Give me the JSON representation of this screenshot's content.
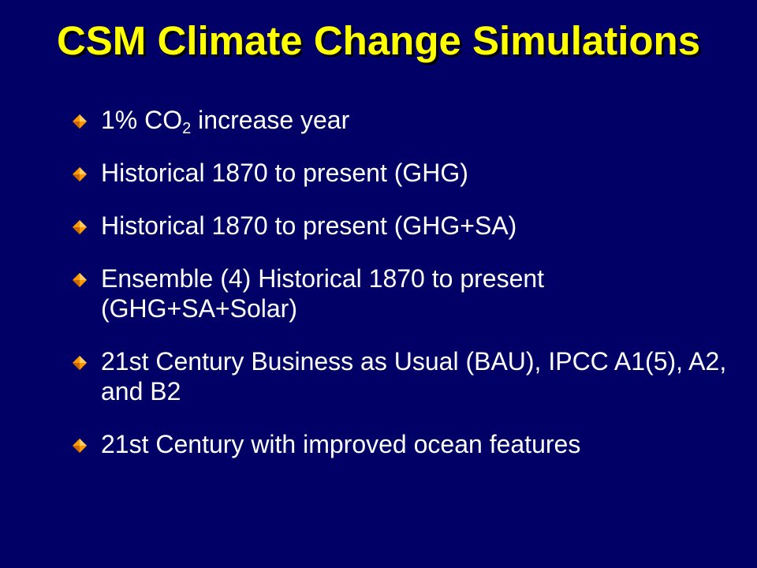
{
  "slide": {
    "title": "CSM Climate Change Simulations",
    "bullets": [
      {
        "pre": "1% CO",
        "sub": "2",
        "post": " increase  year"
      },
      {
        "text": "Historical  1870 to present (GHG)"
      },
      {
        "text": "Historical  1870 to present (GHG+SA)"
      },
      {
        "text": "Ensemble (4) Historical  1870 to present (GHG+SA+Solar)"
      },
      {
        "text": "21st Century Business as Usual (BAU), IPCC A1(5), A2, and B2"
      },
      {
        "text": "21st Century with improved  ocean features"
      }
    ],
    "colors": {
      "background": "#000066",
      "title": "#ffff00",
      "text": "#ffffff",
      "bullet": "#ff9900"
    },
    "bullet_icon": "diamond-bullet-icon"
  }
}
